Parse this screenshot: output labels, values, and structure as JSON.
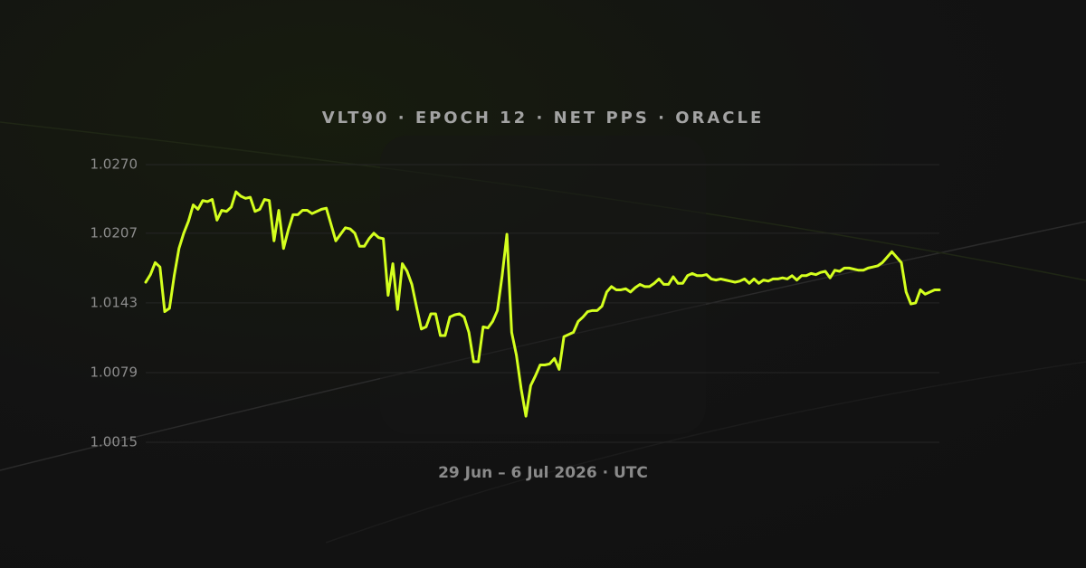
{
  "chart_data": {
    "type": "line",
    "title": "VLT90 · EPOCH 12 · NET PPS · ORACLE",
    "subtitle": "29 Jun – 6 Jul 2026 · UTC",
    "color": "#d4ff1e",
    "grid": true,
    "ylim": [
      1.0015,
      1.027
    ],
    "yticks": [
      1.0015,
      1.0079,
      1.0143,
      1.0207,
      {
        "value": 1.027,
        "label": "1.0270"
      }
    ],
    "values": [
      1.0162,
      1.0169,
      1.018,
      1.0176,
      1.0135,
      1.0138,
      1.0168,
      1.0193,
      1.0207,
      1.0218,
      1.0233,
      1.0229,
      1.0237,
      1.0236,
      1.0238,
      1.0219,
      1.0228,
      1.0227,
      1.0231,
      1.0245,
      1.0241,
      1.0239,
      1.024,
      1.0227,
      1.0229,
      1.0238,
      1.0237,
      1.02,
      1.0228,
      1.0193,
      1.021,
      1.0224,
      1.0224,
      1.0228,
      1.0228,
      1.0225,
      1.0227,
      1.0229,
      1.023,
      1.0215,
      1.02,
      1.0206,
      1.0212,
      1.0211,
      1.0207,
      1.0195,
      1.0195,
      1.0202,
      1.0207,
      1.0203,
      1.0202,
      1.015,
      1.0179,
      1.0137,
      1.0179,
      1.0172,
      1.016,
      1.0139,
      1.0119,
      1.0121,
      1.0133,
      1.0133,
      1.0113,
      1.0113,
      1.013,
      1.0132,
      1.0133,
      1.013,
      1.0116,
      1.0089,
      1.0089,
      1.0121,
      1.012,
      1.0126,
      1.0136,
      1.0168,
      1.0206,
      1.0116,
      1.0095,
      1.0064,
      1.0039,
      1.0067,
      1.0076,
      1.0086,
      1.0086,
      1.0087,
      1.0092,
      1.0082,
      1.0112,
      1.0114,
      1.0116,
      1.0126,
      1.013,
      1.0135,
      1.0136,
      1.0136,
      1.014,
      1.0153,
      1.0158,
      1.0155,
      1.0155,
      1.0156,
      1.0153,
      1.0157,
      1.016,
      1.0158,
      1.0158,
      1.0161,
      1.0165,
      1.016,
      1.016,
      1.0167,
      1.0161,
      1.0161,
      1.0168,
      1.017,
      1.0168,
      1.0168,
      1.0169,
      1.0165,
      1.0164,
      1.0165,
      1.0164,
      1.0163,
      1.0162,
      1.0163,
      1.0165,
      1.0161,
      1.0165,
      1.0161,
      1.0164,
      1.0163,
      1.0165,
      1.0165,
      1.0166,
      1.0165,
      1.0168,
      1.0164,
      1.0168,
      1.0168,
      1.017,
      1.0169,
      1.0171,
      1.0172,
      1.0166,
      1.0173,
      1.0172,
      1.0175,
      1.0175,
      1.0174,
      1.0173,
      1.0173,
      1.0175,
      1.0176,
      1.0177,
      1.018,
      1.0185,
      1.019,
      1.0185,
      1.018,
      1.0153,
      1.0142,
      1.0143,
      1.0155,
      1.0151,
      1.0153,
      1.0155,
      1.0155
    ]
  }
}
